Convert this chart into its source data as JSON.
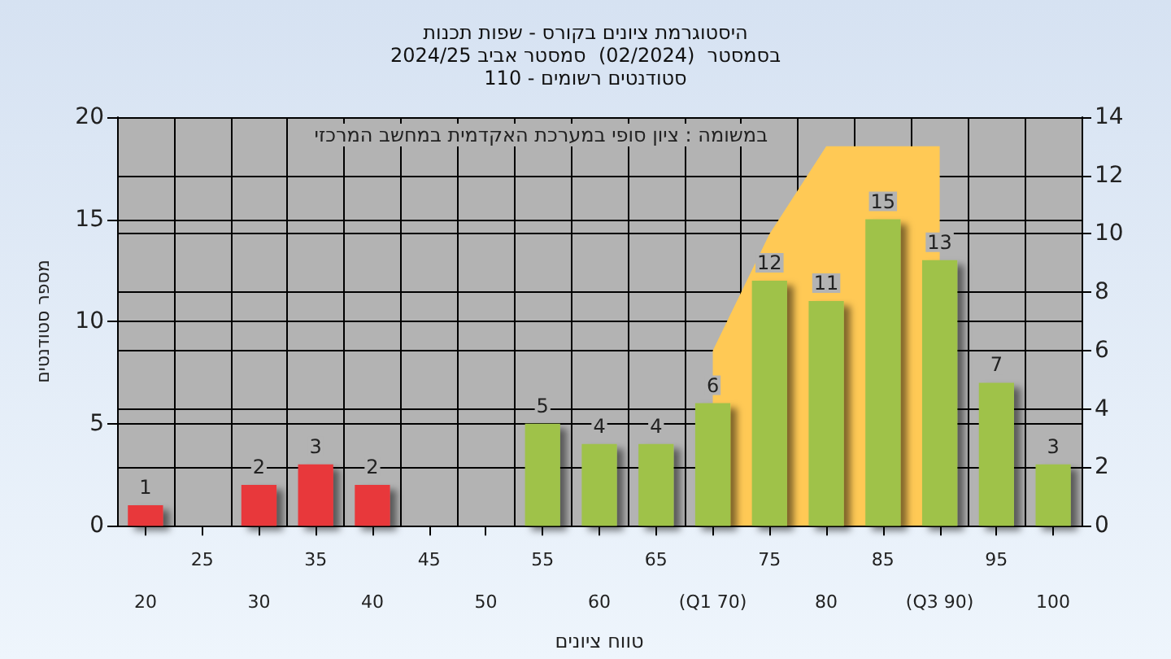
{
  "chart_data": {
    "type": "bar",
    "title": "היסטוגרמת ציונים בקורס - שפות תכנות",
    "subtitle": "בסמסטר  (02/2024)  סמסטר אביב 2024/25\nסטודנטים רשומים - 110",
    "xlabel": "טווח ציונים",
    "ylabel": "מספר סטודנטים",
    "annotations": [
      "במשומה : ציון סופי במערכת האקדמית במחשב המרכזי"
    ],
    "categories": [
      "20",
      "25",
      "30",
      "35",
      "40",
      "45",
      "50",
      "55",
      "60",
      "65",
      "(Q1 70)",
      "75",
      "80",
      "85",
      "(Q3 90)",
      "95",
      "100"
    ],
    "series": [
      {
        "colors": [
          "#e8383b",
          "#e8383b",
          "#e8383b",
          "#e8383b",
          "#e8383b",
          "#e8383b",
          "#e8383b",
          "#9fc24a",
          "#9fc24a",
          "#9fc24a",
          "#9fc24a",
          "#9fc24a",
          "#9fc24a",
          "#9fc24a",
          "#9fc24a",
          "#9fc24a",
          "#9fc24a"
        ],
        "values": [
          1,
          0,
          2,
          3,
          2,
          0,
          0,
          5,
          4,
          4,
          6,
          12,
          11,
          15,
          13,
          7,
          3
        ],
        "value_labels": [
          "1",
          null,
          "2",
          "3",
          "2",
          null,
          null,
          "5",
          "4",
          "4",
          "6",
          "12",
          "11",
          "15",
          "13",
          "7",
          "3"
        ]
      },
      {
        "type": "area",
        "axis": "y2",
        "color": "#ffc955",
        "values": [
          null,
          null,
          null,
          null,
          null,
          null,
          null,
          null,
          null,
          null,
          6,
          10,
          13,
          13,
          13,
          null,
          null
        ]
      }
    ],
    "ylim": [
      0,
      20
    ],
    "yticks": [
      0,
      5,
      10,
      15,
      20
    ],
    "y2lim": [
      0,
      14
    ],
    "y2ticks": [
      0,
      2,
      4,
      6,
      8,
      10,
      12,
      14
    ],
    "grid": true,
    "legend": false
  }
}
